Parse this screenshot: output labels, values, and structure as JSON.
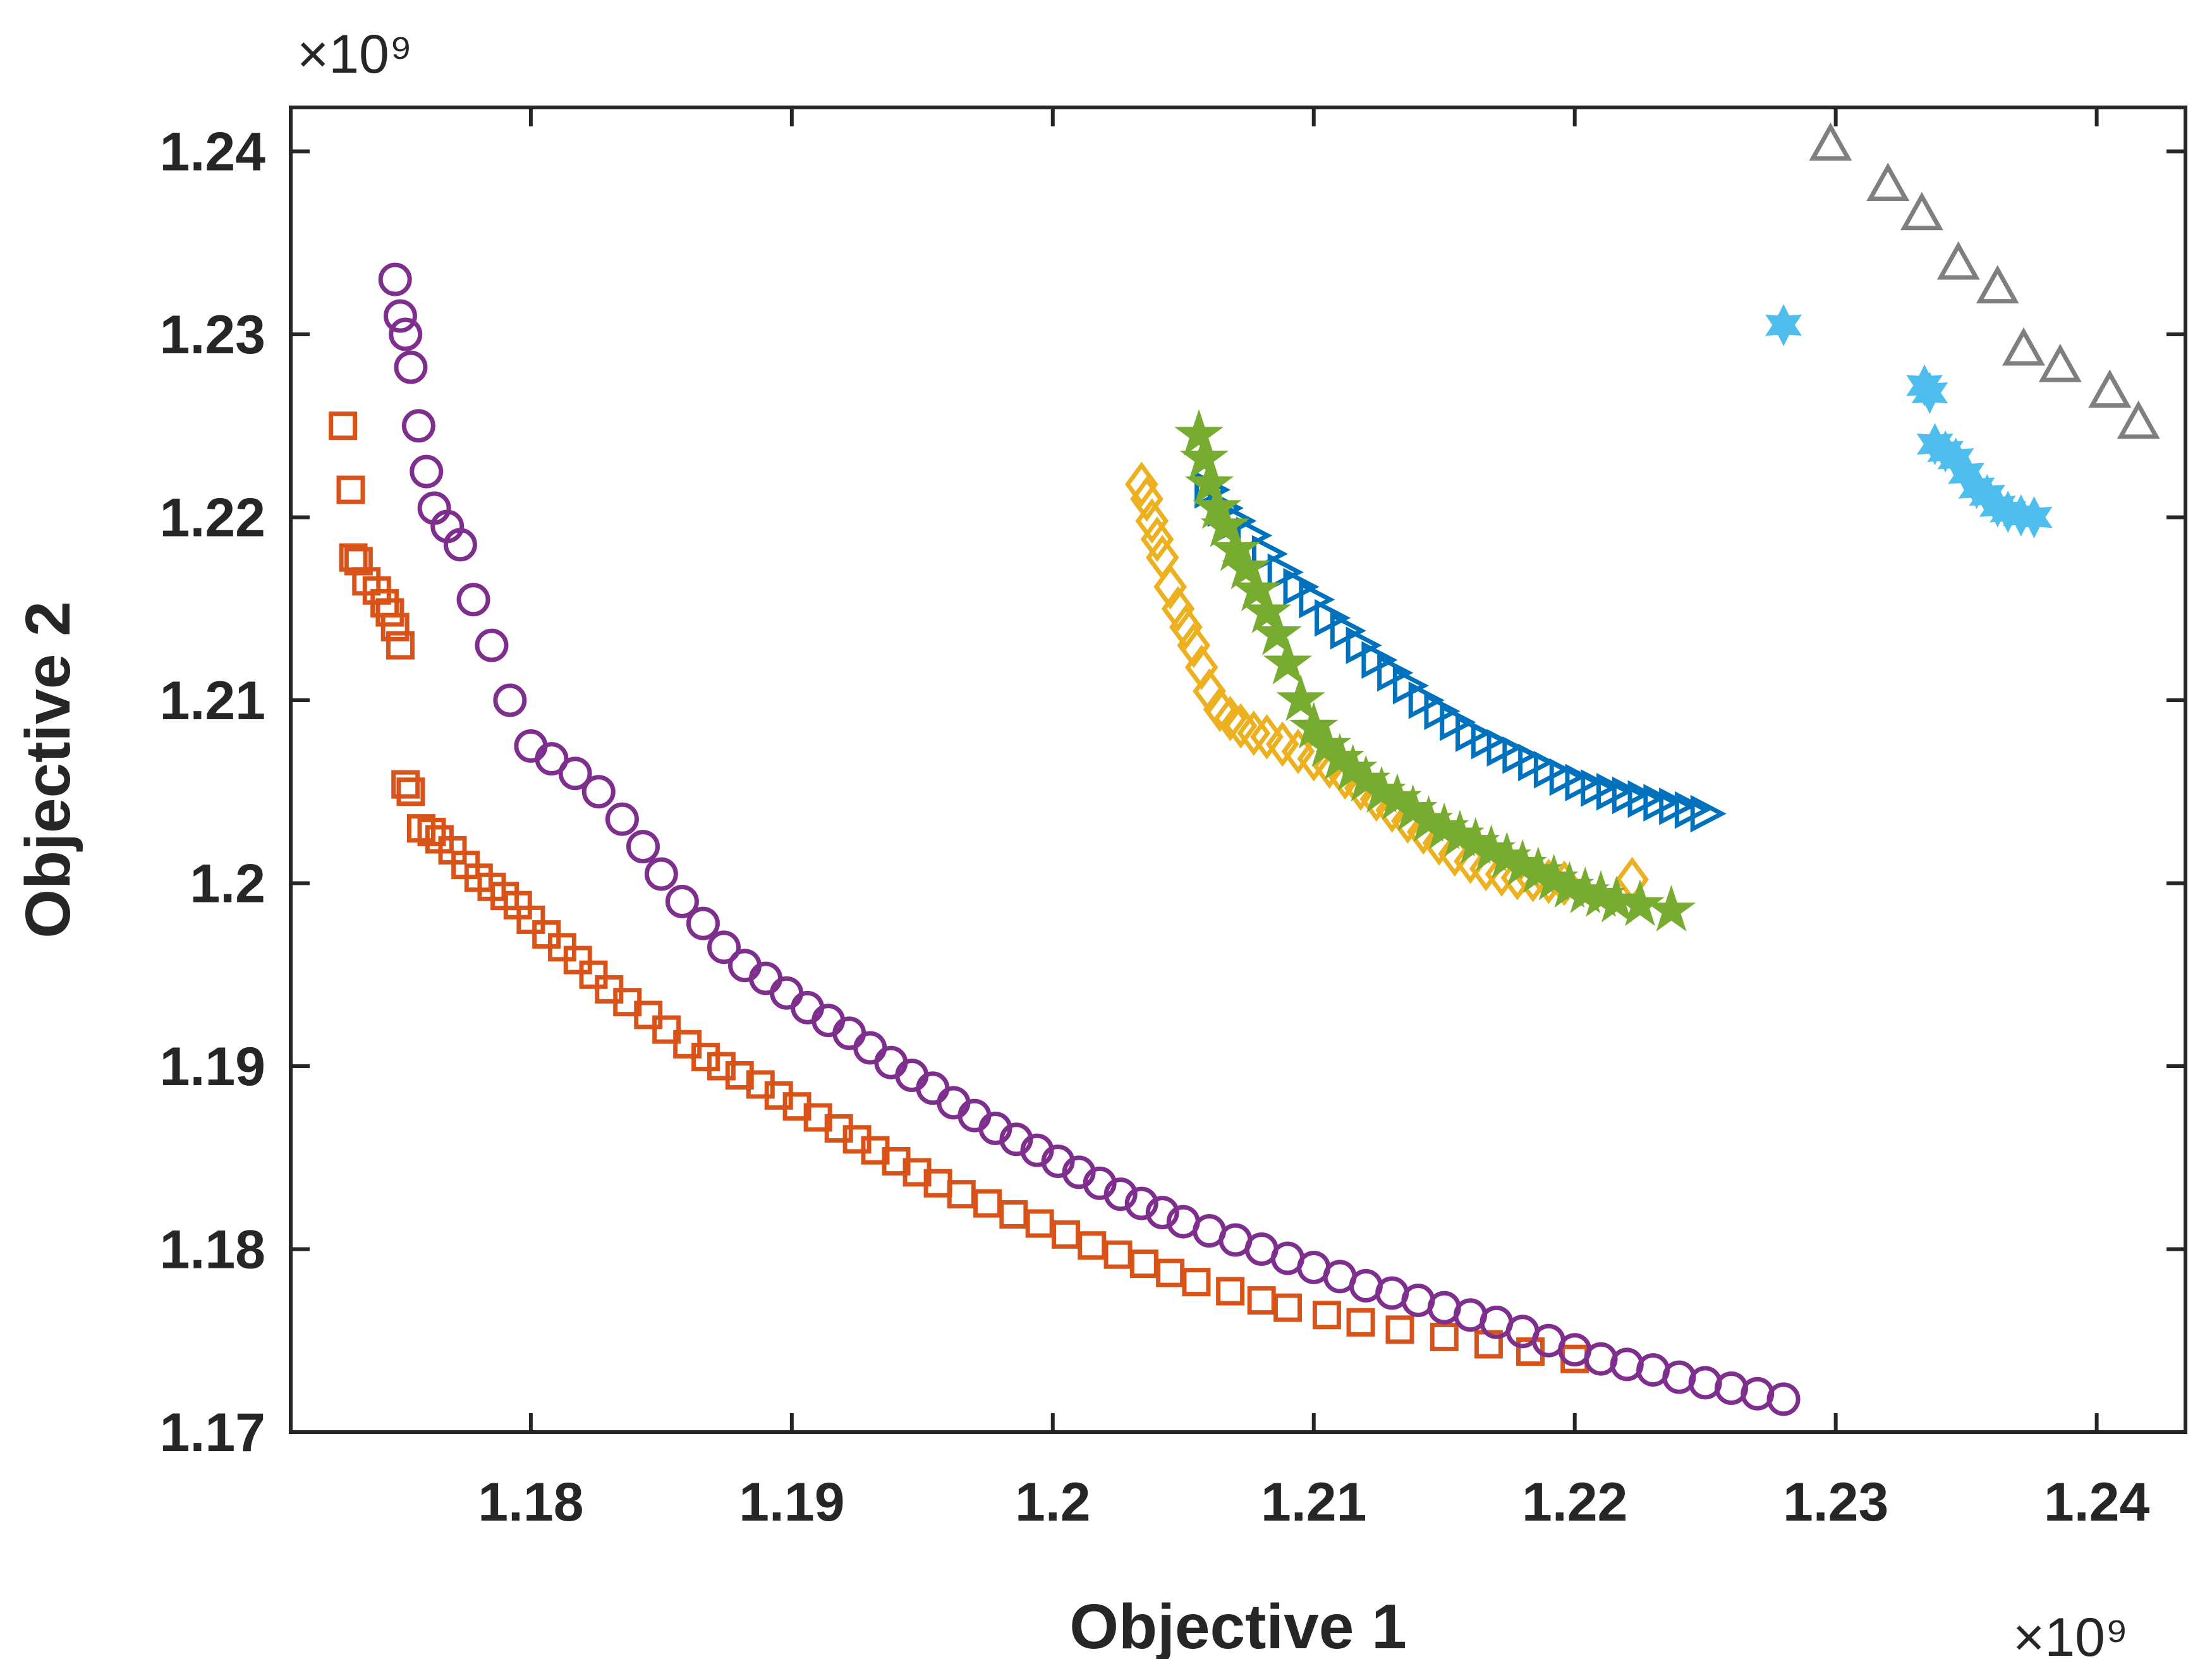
{
  "chart_data": {
    "type": "scatter",
    "title": "",
    "xlabel": "Objective 1",
    "ylabel": "Objective 2",
    "x_exponent_label": "×10⁹",
    "y_exponent_label": "×10⁹",
    "xlim": [
      1.1708,
      1.2434
    ],
    "ylim": [
      1.17,
      1.2424
    ],
    "x_ticks": [
      1.18,
      1.19,
      1.2,
      1.21,
      1.22,
      1.23,
      1.24
    ],
    "x_tick_labels": [
      "1.18",
      "1.19",
      "1.2",
      "1.21",
      "1.22",
      "1.23",
      "1.24"
    ],
    "y_ticks": [
      1.17,
      1.18,
      1.19,
      1.2,
      1.21,
      1.22,
      1.23,
      1.24
    ],
    "y_tick_labels": [
      "1.17",
      "1.18",
      "1.19",
      "1.2",
      "1.21",
      "1.22",
      "1.23",
      "1.24"
    ],
    "units_note": "values in ×10^9",
    "grid": false,
    "colors": {
      "orange_square": "#D95319",
      "purple_circle": "#7E2F8E",
      "yellow_diamond": "#EDB120",
      "blue_triangle_right": "#0072BD",
      "green_star": "#77AC30",
      "cyan_hexagram": "#4DBEEE",
      "gray_triangle_up": "#7F7F7F",
      "axis": "#262626"
    },
    "series": [
      {
        "name": "series-orange-square",
        "marker": "square",
        "color": "#D95319",
        "x": [
          1.1728,
          1.1731,
          1.1732,
          1.1734,
          1.1737,
          1.1741,
          1.1744,
          1.1746,
          1.1748,
          1.175,
          1.1752,
          1.1754,
          1.1758,
          1.1762,
          1.1765,
          1.177,
          1.1775,
          1.178,
          1.1785,
          1.179,
          1.1795,
          1.18,
          1.1806,
          1.1812,
          1.1818,
          1.1824,
          1.183,
          1.1837,
          1.1845,
          1.1852,
          1.186,
          1.1867,
          1.1873,
          1.188,
          1.1888,
          1.1895,
          1.1902,
          1.191,
          1.1918,
          1.1925,
          1.1932,
          1.194,
          1.1948,
          1.1956,
          1.1965,
          1.1975,
          1.1985,
          1.1995,
          1.2005,
          1.2015,
          1.2025,
          1.2035,
          1.2045,
          1.2055,
          1.2068,
          1.208,
          1.209,
          1.2105,
          1.2118,
          1.2133,
          1.215,
          1.2167,
          1.2183,
          1.22
        ],
        "y": [
          1.225,
          1.2215,
          1.2178,
          1.2176,
          1.2165,
          1.216,
          1.2153,
          1.2148,
          1.214,
          1.213,
          1.2054,
          1.205,
          1.203,
          1.2028,
          1.2024,
          1.2018,
          1.201,
          1.2003,
          1.1998,
          1.1993,
          1.1988,
          1.198,
          1.1972,
          1.1965,
          1.1958,
          1.195,
          1.1942,
          1.1935,
          1.1928,
          1.192,
          1.1912,
          1.1905,
          1.19,
          1.1895,
          1.189,
          1.1884,
          1.1878,
          1.1872,
          1.1866,
          1.186,
          1.1854,
          1.1848,
          1.1842,
          1.1836,
          1.183,
          1.1825,
          1.1819,
          1.1814,
          1.1808,
          1.1802,
          1.1797,
          1.1792,
          1.1787,
          1.1782,
          1.1777,
          1.1772,
          1.1768,
          1.1764,
          1.176,
          1.1756,
          1.1752,
          1.1748,
          1.1744,
          1.174
        ]
      },
      {
        "name": "series-purple-circle",
        "marker": "circle",
        "color": "#7E2F8E",
        "x": [
          1.1748,
          1.175,
          1.1752,
          1.1754,
          1.1757,
          1.176,
          1.1763,
          1.1768,
          1.1773,
          1.1778,
          1.1785,
          1.1792,
          1.18,
          1.1808,
          1.1817,
          1.1826,
          1.1835,
          1.1843,
          1.185,
          1.1858,
          1.1866,
          1.1874,
          1.1882,
          1.189,
          1.1898,
          1.1906,
          1.1914,
          1.1922,
          1.193,
          1.1938,
          1.1946,
          1.1954,
          1.1962,
          1.197,
          1.1978,
          1.1986,
          1.1994,
          1.2002,
          1.201,
          1.2018,
          1.2026,
          1.2034,
          1.2042,
          1.205,
          1.206,
          1.207,
          1.208,
          1.209,
          1.21,
          1.211,
          1.212,
          1.213,
          1.214,
          1.215,
          1.216,
          1.217,
          1.218,
          1.219,
          1.22,
          1.221,
          1.222,
          1.223,
          1.224,
          1.225,
          1.226,
          1.227,
          1.228
        ],
        "y": [
          1.233,
          1.231,
          1.23,
          1.2282,
          1.225,
          1.2225,
          1.2205,
          1.2195,
          1.2185,
          1.2155,
          1.213,
          1.21,
          1.2075,
          1.2068,
          1.206,
          1.205,
          1.2035,
          1.202,
          1.2005,
          1.199,
          1.1978,
          1.1965,
          1.1955,
          1.1948,
          1.194,
          1.1932,
          1.1925,
          1.1918,
          1.191,
          1.1902,
          1.1895,
          1.1888,
          1.188,
          1.1873,
          1.1866,
          1.186,
          1.1854,
          1.1848,
          1.1842,
          1.1836,
          1.183,
          1.1825,
          1.182,
          1.1815,
          1.181,
          1.1805,
          1.18,
          1.1795,
          1.179,
          1.1785,
          1.178,
          1.1776,
          1.1772,
          1.1768,
          1.1764,
          1.176,
          1.1755,
          1.175,
          1.1745,
          1.174,
          1.1737,
          1.1734,
          1.173,
          1.1727,
          1.1724,
          1.1721,
          1.1718
        ]
      },
      {
        "name": "series-yellow-diamond",
        "marker": "diamond",
        "color": "#EDB120",
        "x": [
          1.2034,
          1.2036,
          1.2038,
          1.204,
          1.2042,
          1.2045,
          1.2048,
          1.2051,
          1.2054,
          1.2057,
          1.206,
          1.2064,
          1.2068,
          1.2072,
          1.2077,
          1.2082,
          1.2088,
          1.2094,
          1.21,
          1.2106,
          1.2112,
          1.2118,
          1.2124,
          1.213,
          1.2136,
          1.2142,
          1.2148,
          1.2154,
          1.216,
          1.2166,
          1.2172,
          1.2178,
          1.2184,
          1.219,
          1.2196,
          1.2222
        ],
        "y": [
          1.2218,
          1.221,
          1.2198,
          1.2188,
          1.2178,
          1.2162,
          1.215,
          1.214,
          1.213,
          1.2118,
          1.2105,
          1.2095,
          1.209,
          1.2086,
          1.2082,
          1.208,
          1.2076,
          1.2072,
          1.2068,
          1.2064,
          1.2058,
          1.2052,
          1.2046,
          1.204,
          1.2034,
          1.2028,
          1.2022,
          1.2016,
          1.2012,
          1.2008,
          1.2005,
          1.2003,
          1.2002,
          1.2001,
          1.2,
          1.2002
        ]
      },
      {
        "name": "series-blue-triangle-right",
        "marker": "triangle-right",
        "color": "#0072BD",
        "x": [
          1.206,
          1.2065,
          1.207,
          1.2076,
          1.2082,
          1.2088,
          1.2094,
          1.21,
          1.2106,
          1.2112,
          1.2118,
          1.2124,
          1.213,
          1.2136,
          1.2142,
          1.2148,
          1.2154,
          1.216,
          1.2166,
          1.2172,
          1.2178,
          1.2184,
          1.219,
          1.2196,
          1.2202,
          1.2208,
          1.2214,
          1.222,
          1.2226,
          1.2232,
          1.2238,
          1.2244,
          1.225
        ],
        "y": [
          1.2215,
          1.2205,
          1.2198,
          1.219,
          1.218,
          1.217,
          1.2162,
          1.2155,
          1.2145,
          1.2138,
          1.213,
          1.2122,
          1.2115,
          1.2108,
          1.21,
          1.2094,
          1.2088,
          1.2082,
          1.2078,
          1.2074,
          1.207,
          1.2066,
          1.2062,
          1.2058,
          1.2055,
          1.2052,
          1.205,
          1.2048,
          1.2046,
          1.2044,
          1.2042,
          1.204,
          1.2038
        ]
      },
      {
        "name": "series-green-star",
        "marker": "star",
        "color": "#77AC30",
        "x": [
          1.2056,
          1.2058,
          1.206,
          1.2063,
          1.2066,
          1.207,
          1.2074,
          1.2078,
          1.2082,
          1.2086,
          1.209,
          1.2095,
          1.21,
          1.2105,
          1.211,
          1.2115,
          1.212,
          1.2126,
          1.2132,
          1.2138,
          1.2144,
          1.215,
          1.2156,
          1.2162,
          1.2168,
          1.2174,
          1.218,
          1.2186,
          1.2192,
          1.2198,
          1.2204,
          1.221,
          1.2216,
          1.2225,
          1.2237
        ],
        "y": [
          1.2245,
          1.2232,
          1.2218,
          1.2205,
          1.2195,
          1.2182,
          1.2172,
          1.216,
          1.2148,
          1.2136,
          1.212,
          1.21,
          1.2085,
          1.2075,
          1.2068,
          1.2062,
          1.2056,
          1.205,
          1.2046,
          1.204,
          1.2034,
          1.203,
          1.2026,
          1.2022,
          1.2018,
          1.2014,
          1.201,
          1.2006,
          1.2002,
          1.1998,
          1.1995,
          1.1993,
          1.199,
          1.1988,
          1.1985
        ]
      },
      {
        "name": "series-cyan-hexagram",
        "marker": "hexagram",
        "color": "#4DBEEE",
        "x": [
          1.228,
          1.2334,
          1.2336,
          1.2338,
          1.2342,
          1.2346,
          1.235,
          1.2354,
          1.2358,
          1.2362,
          1.2366,
          1.2371,
          1.2376
        ],
        "y": [
          1.2305,
          1.2272,
          1.2268,
          1.224,
          1.2236,
          1.2232,
          1.2224,
          1.2216,
          1.2212,
          1.2206,
          1.2203,
          1.2201,
          1.22
        ]
      },
      {
        "name": "series-gray-triangle-up",
        "marker": "triangle-up",
        "color": "#7F7F7F",
        "x": [
          1.2298,
          1.232,
          1.2333,
          1.2347,
          1.2362,
          1.2372,
          1.2386,
          1.2405,
          1.2416
        ],
        "y": [
          1.2403,
          1.2381,
          1.2365,
          1.2338,
          1.2325,
          1.2291,
          1.2282,
          1.2268,
          1.2251
        ]
      }
    ]
  }
}
